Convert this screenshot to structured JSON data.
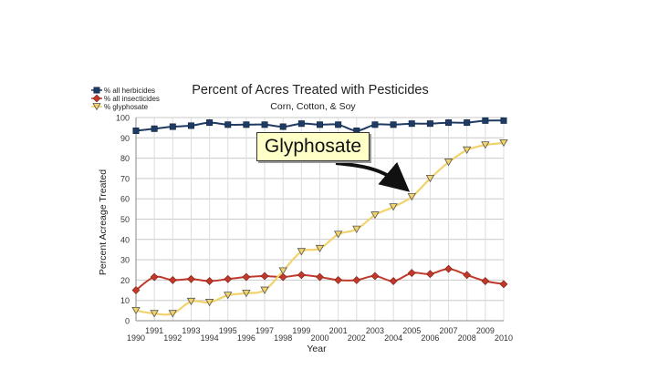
{
  "chart_data": {
    "type": "line",
    "title": "Percent of Acres Treated with Pesticides",
    "subtitle": "Corn, Cotton, & Soy",
    "xlabel": "Year",
    "ylabel": "Percent Acreage Treated",
    "xlim": [
      1990,
      2010
    ],
    "ylim": [
      0,
      100
    ],
    "yticks": [
      0,
      10,
      20,
      30,
      40,
      50,
      60,
      70,
      80,
      90,
      100
    ],
    "xticks_lower": [
      "1990",
      "1992",
      "1994",
      "1996",
      "1998",
      "2000",
      "2002",
      "2004",
      "2006",
      "2008",
      "2010"
    ],
    "xticks_upper": [
      "1991",
      "1993",
      "1995",
      "1997",
      "1999",
      "2001",
      "2003",
      "2005",
      "2007",
      "2009"
    ],
    "grid": true,
    "legend_position": "top-left",
    "x": [
      1990,
      1991,
      1992,
      1993,
      1994,
      1995,
      1996,
      1997,
      1998,
      1999,
      2000,
      2001,
      2002,
      2003,
      2004,
      2005,
      2006,
      2007,
      2008,
      2009,
      2010
    ],
    "series": [
      {
        "name": "% all herbicides",
        "color": "#1f3b63",
        "marker": "square",
        "values": [
          93.5,
          94.5,
          95.5,
          96,
          97.5,
          96.5,
          96.5,
          96.5,
          95.5,
          97,
          96.5,
          96.5,
          93.5,
          96.5,
          96.5,
          97,
          97,
          97.5,
          97.5,
          98.5,
          98.5
        ]
      },
      {
        "name": "% all insecticides",
        "color": "#c0392b",
        "marker": "diamond",
        "values": [
          15,
          21.5,
          20,
          20.5,
          19.5,
          20.5,
          21.5,
          22,
          21.5,
          22.5,
          21.5,
          20,
          20,
          22,
          19.5,
          23.5,
          23,
          25.5,
          22.5,
          19.5,
          18
        ]
      },
      {
        "name": "% glyphosate",
        "color": "#f2d36b",
        "marker": "triangle-down",
        "values": [
          5,
          3.5,
          3.5,
          9.5,
          9,
          12.5,
          13.5,
          15,
          24.5,
          34,
          35.5,
          42.5,
          45,
          52,
          56,
          61,
          70,
          78,
          84,
          86.5,
          87.5
        ]
      }
    ],
    "annotation": {
      "text": "Glyphosate",
      "points_to": {
        "x": 2004.5,
        "y": 54
      }
    }
  }
}
